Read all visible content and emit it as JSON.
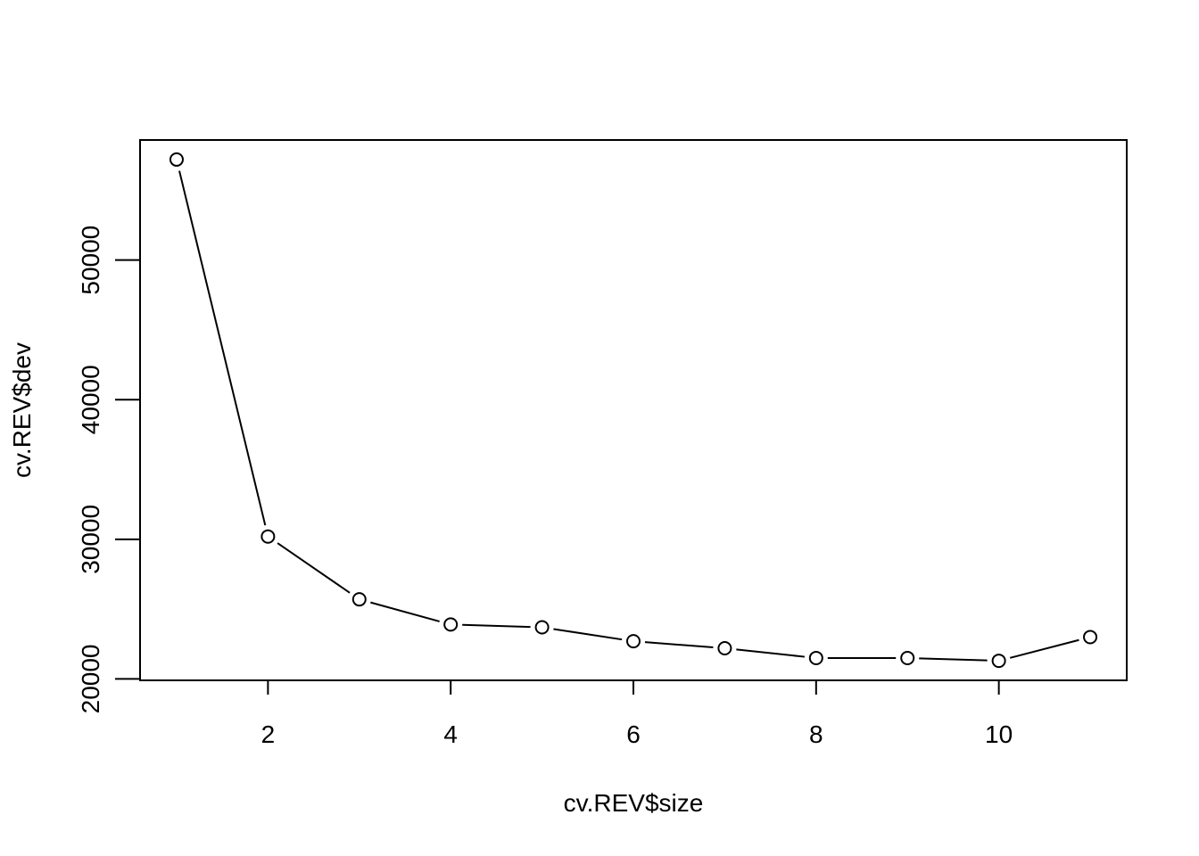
{
  "chart_data": {
    "type": "line",
    "title": "",
    "xlabel": "cv.REV$size",
    "ylabel": "cv.REV$dev",
    "x": [
      1,
      2,
      3,
      4,
      5,
      6,
      7,
      8,
      9,
      10,
      11
    ],
    "y": [
      57200,
      30200,
      25700,
      23900,
      23700,
      22700,
      22200,
      21500,
      21500,
      21300,
      23000
    ],
    "xlim": [
      0.6,
      11.4
    ],
    "ylim": [
      19900,
      58600
    ],
    "xticks": [
      2,
      4,
      6,
      8,
      10
    ],
    "yticks": [
      20000,
      30000,
      40000,
      50000
    ],
    "xtick_labels": [
      "2",
      "4",
      "6",
      "8",
      "10"
    ],
    "ytick_labels": [
      "20000",
      "30000",
      "40000",
      "50000"
    ],
    "marker": "open-circle",
    "grid": false,
    "line_color": "#000000"
  }
}
